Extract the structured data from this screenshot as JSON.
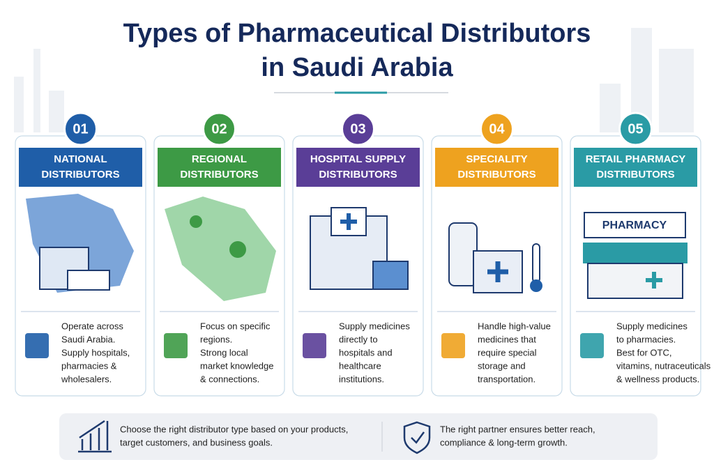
{
  "header": {
    "title": [
      "Types of Pharmaceutical Distributors",
      "in Saudi Arabia"
    ]
  },
  "cards": [
    {
      "number": "01",
      "color": "#1f5ea8",
      "title": [
        "NATIONAL",
        "DISTRIBUTORS"
      ],
      "description": [
        "Operate across",
        "Saudi Arabia.",
        "Supply hospitals,",
        "pharmacies &",
        "wholesalers."
      ]
    },
    {
      "number": "02",
      "color": "#3d9a45",
      "title": [
        "REGIONAL",
        "DISTRIBUTORS"
      ],
      "description": [
        "Focus on specific",
        "regions.",
        "Strong local",
        "market knowledge",
        "& connections."
      ]
    },
    {
      "number": "03",
      "color": "#5a3e97",
      "title": [
        "HOSPITAL SUPPLY",
        "DISTRIBUTORS"
      ],
      "description": [
        "Supply medicines",
        "directly to",
        "hospitals and",
        "healthcare",
        "institutions."
      ]
    },
    {
      "number": "04",
      "color": "#eea21f",
      "title": [
        "SPECIALITY",
        "DISTRIBUTORS"
      ],
      "description": [
        "Handle high-value",
        "medicines that",
        "require special",
        "storage and",
        "transportation."
      ]
    },
    {
      "number": "05",
      "color": "#2a9ba5",
      "title": [
        "RETAIL PHARMACY",
        "DISTRIBUTORS"
      ],
      "description": [
        "Supply medicines",
        "to pharmacies.",
        "Best for OTC,",
        "vitamins, nutraceuticals",
        "& wellness products."
      ],
      "sign": "PHARMACY"
    }
  ],
  "footer": [
    {
      "text": [
        "Choose the right distributor type based on your products,",
        "target customers, and business goals."
      ]
    },
    {
      "text": [
        "The right partner ensures better reach,",
        "compliance & long-term growth."
      ]
    }
  ]
}
